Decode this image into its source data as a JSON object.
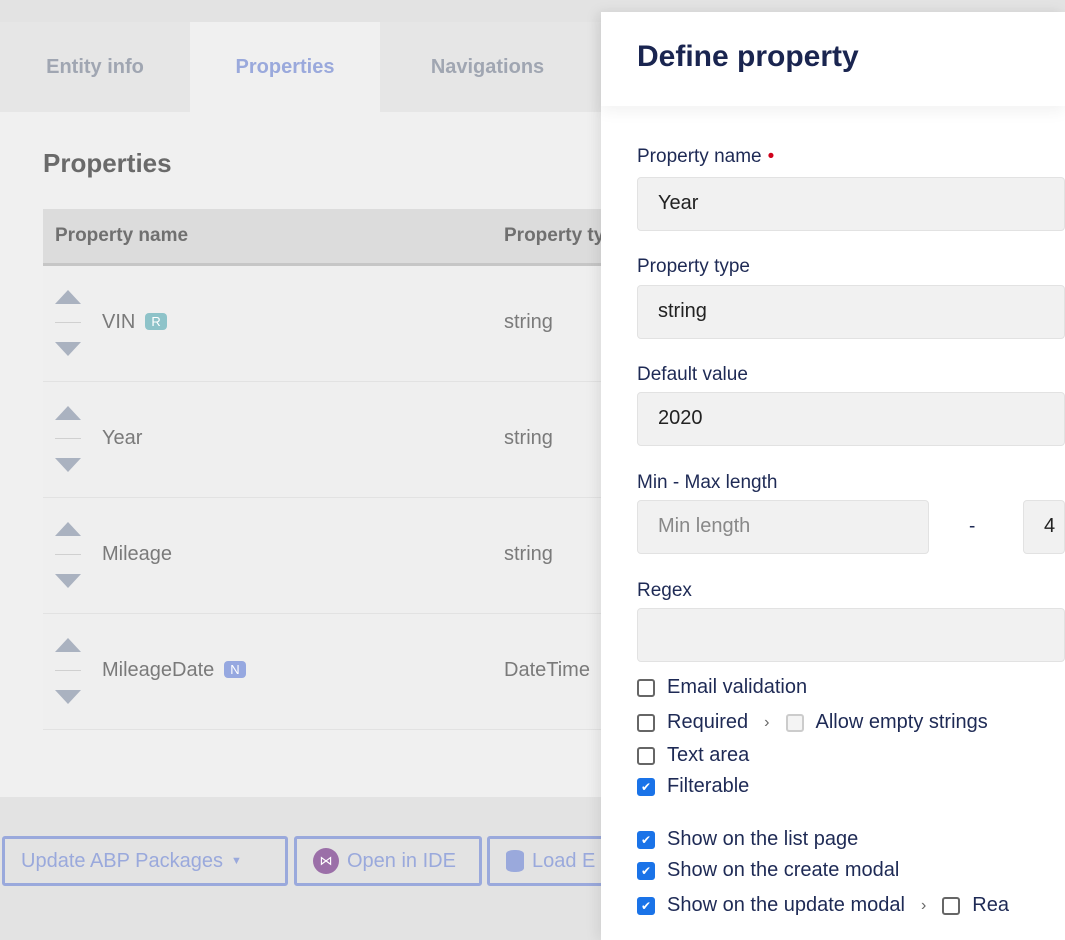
{
  "tabs": [
    "Entity info",
    "Properties",
    "Navigations"
  ],
  "section_title": "Properties",
  "table": {
    "headers": [
      "Property name",
      "Property type"
    ],
    "rows": [
      {
        "name": "VIN",
        "badge": "R",
        "badge_color": "#8ec3c9",
        "type": "string"
      },
      {
        "name": "Year",
        "badge": "",
        "type": "string"
      },
      {
        "name": "Mileage",
        "badge": "",
        "type": "string"
      },
      {
        "name": "MileageDate",
        "badge": "N",
        "badge_color": "#96a8e0",
        "type": "DateTime"
      }
    ]
  },
  "buttons": {
    "update": "Update ABP Packages",
    "open_ide": "Open in IDE",
    "load": "Load E"
  },
  "panel": {
    "title": "Define property",
    "name_label": "Property name",
    "name_value": "Year",
    "type_label": "Property type",
    "type_value": "string",
    "default_label": "Default value",
    "default_value": "2020",
    "minmax_label": "Min - Max length",
    "min_placeholder": "Min length",
    "dash": "-",
    "max_value": "4",
    "regex_label": "Regex",
    "regex_value": "",
    "checkboxes": [
      {
        "label": "Email validation",
        "checked": false
      },
      {
        "label": "Required",
        "checked": false,
        "sub": "Allow empty strings"
      },
      {
        "label": "Text area",
        "checked": false
      },
      {
        "label": "Filterable",
        "checked": true
      },
      {
        "label": "Show on the list page",
        "checked": true
      },
      {
        "label": "Show on the create modal",
        "checked": true
      },
      {
        "label": "Show on the update modal",
        "checked": true,
        "sub": "Rea"
      }
    ]
  }
}
